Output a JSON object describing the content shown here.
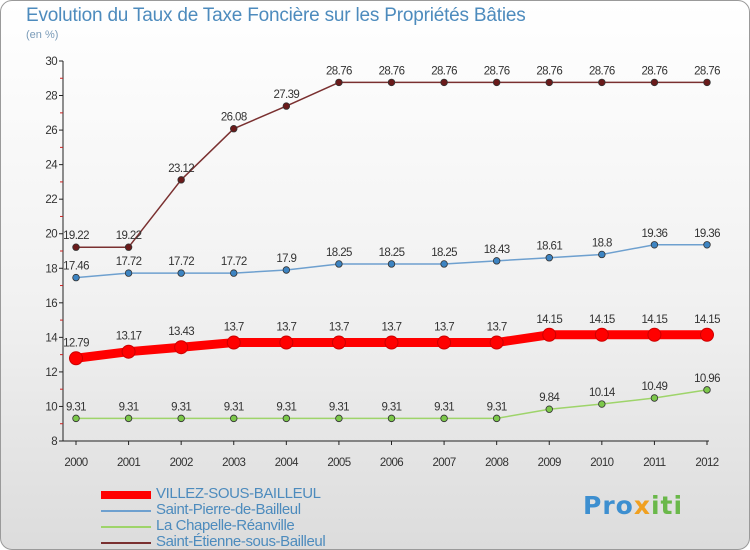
{
  "chart_data": {
    "type": "line",
    "title": "Evolution du Taux de Taxe Foncière sur les Propriétés Bâties",
    "unit_label": "(en %)",
    "x": [
      "2000",
      "2001",
      "2002",
      "2003",
      "2004",
      "2005",
      "2006",
      "2007",
      "2008",
      "2009",
      "2010",
      "2011",
      "2012"
    ],
    "ylim": [
      8,
      30
    ],
    "yticks": [
      8,
      10,
      12,
      14,
      16,
      18,
      20,
      22,
      24,
      26,
      28,
      30
    ],
    "grid": false,
    "legend_position": "bottom-left",
    "series": [
      {
        "name": "VILLEZ-SOUS-BAILLEUL",
        "color": "#ff0000",
        "marker": "#ff0000",
        "values": [
          12.79,
          13.17,
          13.43,
          13.7,
          13.7,
          13.7,
          13.7,
          13.7,
          13.7,
          14.15,
          14.15,
          14.15,
          14.15
        ],
        "labels": [
          "12.79",
          "13.17",
          "13.43",
          "13.7",
          "13.7",
          "13.7",
          "13.7",
          "13.7",
          "13.7",
          "14.15",
          "14.15",
          "14.15",
          "14.15"
        ]
      },
      {
        "name": "Saint-Pierre-de-Bailleul",
        "color": "#6ea0cf",
        "marker": "#3d84c2",
        "values": [
          17.46,
          17.72,
          17.72,
          17.72,
          17.9,
          18.25,
          18.25,
          18.25,
          18.43,
          18.61,
          18.8,
          19.36,
          19.36
        ],
        "labels": [
          "17.46",
          "17.72",
          "17.72",
          "17.72",
          "17.9",
          "18.25",
          "18.25",
          "18.25",
          "18.43",
          "18.61",
          "18.8",
          "19.36",
          "19.36"
        ]
      },
      {
        "name": "La Chapelle-Réanville",
        "color": "#9ed46a",
        "marker": "#7cc84a",
        "values": [
          9.31,
          9.31,
          9.31,
          9.31,
          9.31,
          9.31,
          9.31,
          9.31,
          9.31,
          9.84,
          10.14,
          10.49,
          10.96
        ],
        "labels": [
          "9.31",
          "9.31",
          "9.31",
          "9.31",
          "9.31",
          "9.31",
          "9.31",
          "9.31",
          "9.31",
          "9.84",
          "10.14",
          "10.49",
          "10.96"
        ]
      },
      {
        "name": "Saint-Étienne-sous-Bailleul",
        "color": "#7a3030",
        "marker": "#6a1a1a",
        "values": [
          19.22,
          19.22,
          23.12,
          26.08,
          27.39,
          28.76,
          28.76,
          28.76,
          28.76,
          28.76,
          28.76,
          28.76,
          28.76
        ],
        "labels": [
          "19.22",
          "19.22",
          "23.12",
          "26.08",
          "27.39",
          "28.76",
          "28.76",
          "28.76",
          "28.76",
          "28.76",
          "28.76",
          "28.76",
          "28.76"
        ]
      }
    ]
  },
  "legend": [
    {
      "label": "VILLEZ-SOUS-BAILLEUL",
      "color": "#ff0000",
      "thickness": 8
    },
    {
      "label": "Saint-Pierre-de-Bailleul",
      "color": "#6ea0cf",
      "thickness": 2
    },
    {
      "label": "La Chapelle-Réanville",
      "color": "#9ed46a",
      "thickness": 2
    },
    {
      "label": "Saint-Étienne-sous-Bailleul",
      "color": "#7a3030",
      "thickness": 2
    }
  ],
  "logo": {
    "part1": "Pro",
    "part2": "x",
    "part3": "iti"
  }
}
